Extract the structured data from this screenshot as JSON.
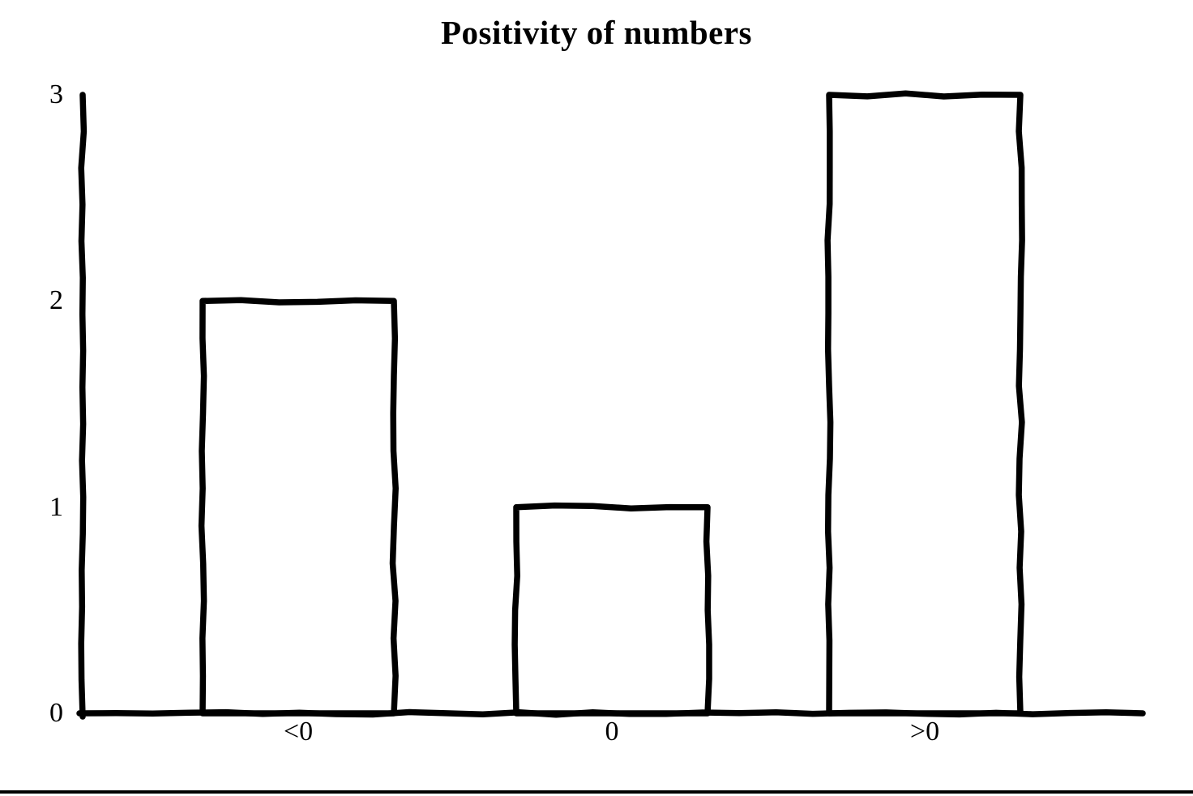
{
  "chart_data": {
    "type": "bar",
    "title": "Positivity of numbers",
    "categories": [
      "<0",
      "0",
      ">0"
    ],
    "values": [
      2,
      1,
      3
    ],
    "y_ticks": [
      "0",
      "1",
      "2",
      "3"
    ],
    "ylim": [
      0,
      3
    ],
    "xlabel": "",
    "ylabel": "",
    "legend": "none",
    "grid": false,
    "style": "hand-drawn-sketch",
    "bar_fill": "#ffffff",
    "stroke_color": "#000000",
    "background": "#ffffff"
  }
}
